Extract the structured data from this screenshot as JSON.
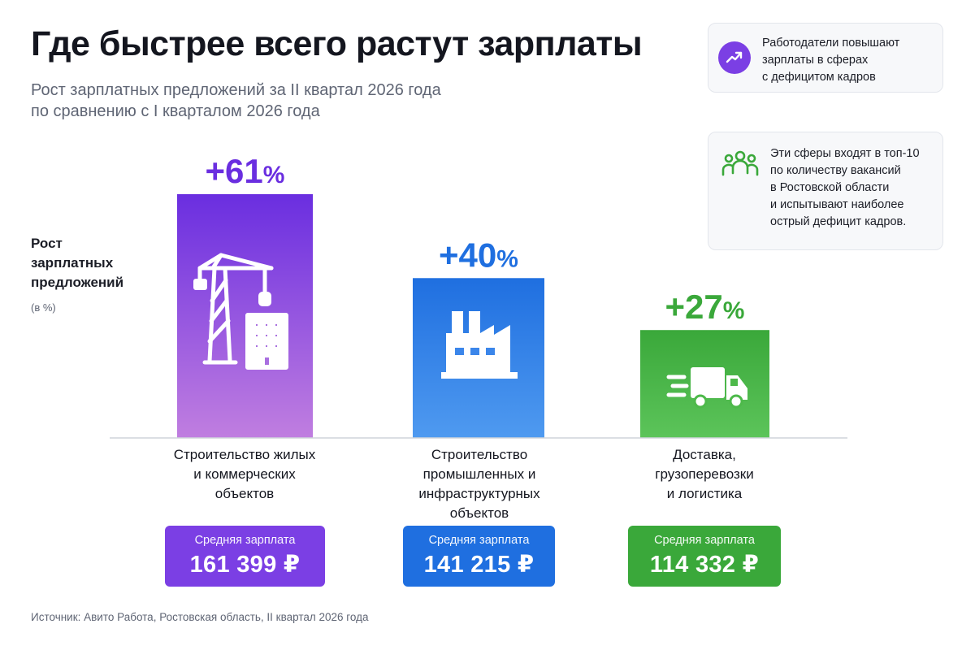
{
  "header": {
    "title": "Где быстрее всего растут зарплаты",
    "subtitle_line1": "Рост зарплатных предложений за II квартал 2026 года",
    "subtitle_line2": "по сравнению с I кварталом 2026 года"
  },
  "info_cards": [
    {
      "icon": "trend-up-icon",
      "icon_color": "#7b3fe4",
      "lines": [
        "Работодатели повышают",
        "зарплаты в сферах",
        "с дефицитом кадров"
      ]
    },
    {
      "icon": "people-group-icon",
      "icon_color": "#3aa83a",
      "lines": [
        "Эти сферы входят в топ-10",
        "по количеству вакансий",
        "в Ростовской области",
        "и испытывают наиболее",
        "острый дефицит кадров."
      ]
    }
  ],
  "axis": {
    "label_lines": [
      "Рост",
      "зарплатных",
      "предложений"
    ],
    "unit": "(в %)"
  },
  "chart_data": {
    "type": "bar",
    "categories": [
      "Строительство жилых и коммерческих объектов",
      "Строительство промышленных и инфраструктурных объектов",
      "Доставка, грузоперевозки и логистика"
    ],
    "category_lines": [
      [
        "Строительство жилых",
        "и коммерческих",
        "объектов"
      ],
      [
        "Строительство",
        "промышленных и",
        "инфраструктурных",
        "объектов"
      ],
      [
        "Доставка,",
        "грузоперевозки",
        "и логистика"
      ]
    ],
    "values": [
      61,
      40,
      27
    ],
    "value_labels": [
      "+61%",
      "+40%",
      "+27%"
    ],
    "ylabel": "Рост зарплатных предложений (в %)",
    "ylim": [
      0,
      61
    ],
    "grid": false,
    "icons": [
      "crane-building-icon",
      "factory-icon",
      "delivery-truck-icon"
    ],
    "colors": [
      {
        "top": "#6a2ee0",
        "bottom": "#c07ee0",
        "label": "#6a2ee0"
      },
      {
        "top": "#1f6fe0",
        "bottom": "#4f9af0",
        "label": "#1f6fe0"
      },
      {
        "top": "#3aa83a",
        "bottom": "#5cc45a",
        "label": "#3aa83a"
      }
    ]
  },
  "salaries": [
    {
      "label": "Средняя зарплата",
      "value": "161 399 ₽",
      "color": "#7b3fe4"
    },
    {
      "label": "Средняя зарплата",
      "value": "141 215 ₽",
      "color": "#1f6fe0"
    },
    {
      "label": "Средняя зарплата",
      "value": "114 332 ₽",
      "color": "#3aa83a"
    }
  ],
  "footer": {
    "source": "Источник: Авито Работа, Ростовская область, II квартал 2026 года"
  }
}
